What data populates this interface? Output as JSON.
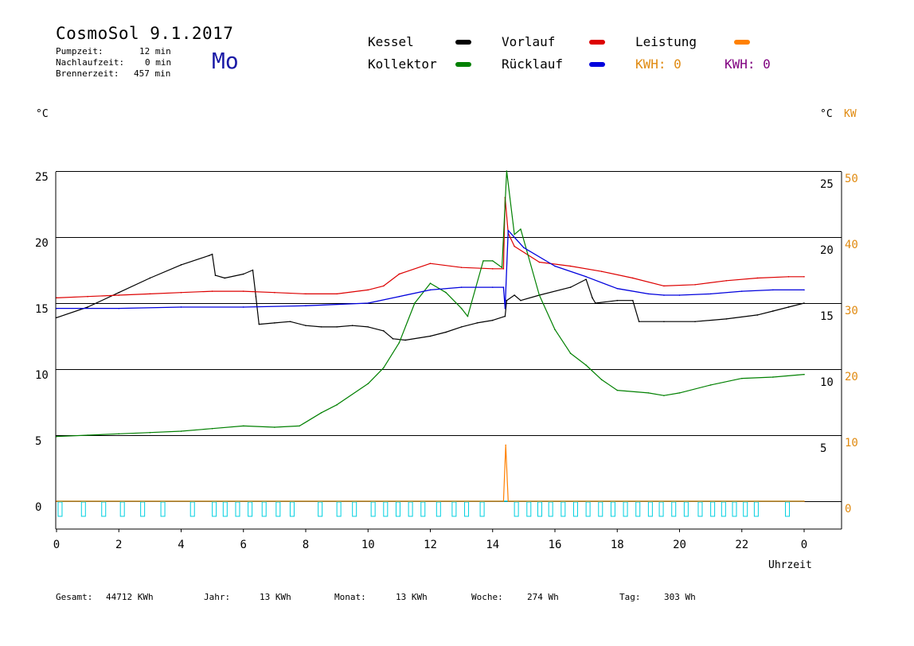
{
  "header": {
    "title": "CosmoSol 9.1.2017",
    "day_of_week": "Mo",
    "stats": [
      {
        "label": "Pumpzeit:",
        "value": "12 min"
      },
      {
        "label": "Nachlaufzeit:",
        "value": "0 min"
      },
      {
        "label": "Brennerzeit:",
        "value": "457 min"
      }
    ]
  },
  "legend": {
    "items": [
      {
        "label": "Kessel",
        "color": "#000000"
      },
      {
        "label": "Vorlauf",
        "color": "#dd0000"
      },
      {
        "label": "Leistung",
        "color": "#ff8000"
      },
      {
        "label": "Kollektor",
        "color": "#008000"
      },
      {
        "label": "Rücklauf",
        "color": "#0000dd"
      }
    ],
    "kwh_orange": "KWH: 0",
    "kwh_purple": "KWH: 0",
    "kwh_orange_color": "#e08a10",
    "kwh_purple_color": "#800080"
  },
  "axes": {
    "left_unit": "°C",
    "right_unit_c": "°C",
    "right_unit_kw": "KW",
    "xlabel": "Uhrzeit"
  },
  "footer": [
    {
      "label": "Gesamt:",
      "value": "44712 KWh"
    },
    {
      "label": "Jahr:",
      "value": "13 KWh"
    },
    {
      "label": "Monat:",
      "value": "13 KWh"
    },
    {
      "label": "Woche:",
      "value": "274 Wh"
    },
    {
      "label": "Tag:",
      "value": "303 Wh"
    }
  ],
  "chart_data": {
    "type": "line",
    "x_range": [
      0,
      24
    ],
    "x_ticks": [
      "0",
      "2",
      "4",
      "6",
      "8",
      "10",
      "12",
      "14",
      "16",
      "18",
      "20",
      "22",
      "0"
    ],
    "y_left_ticks": [
      0,
      5,
      10,
      15,
      20,
      25
    ],
    "y_right_c_ticks": [
      5,
      10,
      15,
      20,
      25
    ],
    "y_right_kw_ticks": [
      0,
      10,
      20,
      30,
      40,
      50
    ],
    "ylim": [
      -1.5,
      25.5
    ],
    "grid": "horizontal",
    "series": [
      {
        "name": "Kessel",
        "color": "#000000",
        "points": [
          [
            0,
            13.9
          ],
          [
            1,
            14.7
          ],
          [
            2,
            15.8
          ],
          [
            3,
            16.9
          ],
          [
            4,
            17.9
          ],
          [
            4.9,
            18.6
          ],
          [
            5,
            18.7
          ],
          [
            5.1,
            17.1
          ],
          [
            5.4,
            16.9
          ],
          [
            6,
            17.2
          ],
          [
            6.3,
            17.5
          ],
          [
            6.4,
            15.5
          ],
          [
            6.5,
            13.4
          ],
          [
            7,
            13.5
          ],
          [
            7.5,
            13.6
          ],
          [
            8,
            13.3
          ],
          [
            8.5,
            13.2
          ],
          [
            9,
            13.2
          ],
          [
            9.5,
            13.3
          ],
          [
            10,
            13.2
          ],
          [
            10.5,
            12.9
          ],
          [
            10.8,
            12.3
          ],
          [
            11.2,
            12.2
          ],
          [
            12,
            12.5
          ],
          [
            12.5,
            12.8
          ],
          [
            13,
            13.2
          ],
          [
            13.5,
            13.5
          ],
          [
            14,
            13.7
          ],
          [
            14.4,
            14.0
          ],
          [
            14.45,
            15.2
          ],
          [
            14.7,
            15.6
          ],
          [
            14.9,
            15.2
          ],
          [
            15.5,
            15.6
          ],
          [
            16.5,
            16.2
          ],
          [
            17,
            16.8
          ],
          [
            17.2,
            15.4
          ],
          [
            17.3,
            15.0
          ],
          [
            18,
            15.2
          ],
          [
            18.5,
            15.2
          ],
          [
            18.7,
            13.6
          ],
          [
            19.5,
            13.6
          ],
          [
            20.5,
            13.6
          ],
          [
            21.5,
            13.8
          ],
          [
            22.5,
            14.1
          ],
          [
            23,
            14.4
          ],
          [
            23.5,
            14.7
          ],
          [
            24,
            15.0
          ]
        ]
      },
      {
        "name": "Vorlauf",
        "color": "#dd0000",
        "points": [
          [
            0,
            15.4
          ],
          [
            1,
            15.5
          ],
          [
            2,
            15.6
          ],
          [
            3,
            15.7
          ],
          [
            4,
            15.8
          ],
          [
            5,
            15.9
          ],
          [
            6,
            15.9
          ],
          [
            7,
            15.8
          ],
          [
            8,
            15.7
          ],
          [
            9,
            15.7
          ],
          [
            10,
            16
          ],
          [
            10.5,
            16.3
          ],
          [
            11,
            17.2
          ],
          [
            12,
            18
          ],
          [
            13,
            17.7
          ],
          [
            14,
            17.6
          ],
          [
            14.35,
            17.6
          ],
          [
            14.4,
            23
          ],
          [
            14.5,
            20.3
          ],
          [
            14.7,
            19.3
          ],
          [
            15.5,
            18.1
          ],
          [
            16.5,
            17.8
          ],
          [
            17.5,
            17.4
          ],
          [
            18.5,
            16.9
          ],
          [
            19.5,
            16.3
          ],
          [
            20.5,
            16.4
          ],
          [
            21.5,
            16.7
          ],
          [
            22.5,
            16.9
          ],
          [
            23.5,
            17.0
          ],
          [
            24,
            17.0
          ]
        ]
      },
      {
        "name": "Kollektor",
        "color": "#008000",
        "points": [
          [
            0,
            4.9
          ],
          [
            1,
            5
          ],
          [
            2,
            5.1
          ],
          [
            3,
            5.2
          ],
          [
            4,
            5.3
          ],
          [
            5,
            5.5
          ],
          [
            6,
            5.7
          ],
          [
            7,
            5.6
          ],
          [
            7.8,
            5.7
          ],
          [
            8.5,
            6.7
          ],
          [
            9,
            7.3
          ],
          [
            10,
            8.9
          ],
          [
            10.5,
            10.1
          ],
          [
            11,
            12
          ],
          [
            11.5,
            15
          ],
          [
            12,
            16.5
          ],
          [
            12.5,
            15.8
          ],
          [
            13,
            14.6
          ],
          [
            13.2,
            14.0
          ],
          [
            13.7,
            18.2
          ],
          [
            14.0,
            18.2
          ],
          [
            14.3,
            17.7
          ],
          [
            14.45,
            25
          ],
          [
            14.7,
            20.2
          ],
          [
            14.9,
            20.6
          ],
          [
            15.5,
            15.6
          ],
          [
            16,
            13
          ],
          [
            16.5,
            11.2
          ],
          [
            17,
            10.3
          ],
          [
            17.5,
            9.2
          ],
          [
            18,
            8.4
          ],
          [
            19,
            8.2
          ],
          [
            19.5,
            8.0
          ],
          [
            20,
            8.2
          ],
          [
            21,
            8.8
          ],
          [
            22,
            9.3
          ],
          [
            23,
            9.4
          ],
          [
            24,
            9.6
          ]
        ]
      },
      {
        "name": "Rücklauf",
        "color": "#0000dd",
        "points": [
          [
            0,
            14.6
          ],
          [
            2,
            14.6
          ],
          [
            4,
            14.7
          ],
          [
            6,
            14.7
          ],
          [
            8,
            14.8
          ],
          [
            10,
            15.0
          ],
          [
            11,
            15.5
          ],
          [
            12,
            16.0
          ],
          [
            13,
            16.2
          ],
          [
            14,
            16.2
          ],
          [
            14.35,
            16.2
          ],
          [
            14.4,
            14.6
          ],
          [
            14.5,
            20.5
          ],
          [
            15,
            19.2
          ],
          [
            16,
            17.8
          ],
          [
            17,
            17.0
          ],
          [
            18,
            16.1
          ],
          [
            19,
            15.7
          ],
          [
            19.5,
            15.6
          ],
          [
            20,
            15.6
          ],
          [
            21,
            15.7
          ],
          [
            22,
            15.9
          ],
          [
            23,
            16.0
          ],
          [
            24,
            16.0
          ]
        ]
      },
      {
        "name": "Leistung",
        "color": "#ff8000",
        "axis": "kw",
        "points": [
          [
            0,
            0
          ],
          [
            14.35,
            0
          ],
          [
            14.42,
            8.5
          ],
          [
            14.5,
            0
          ],
          [
            24,
            0
          ]
        ]
      }
    ]
  }
}
